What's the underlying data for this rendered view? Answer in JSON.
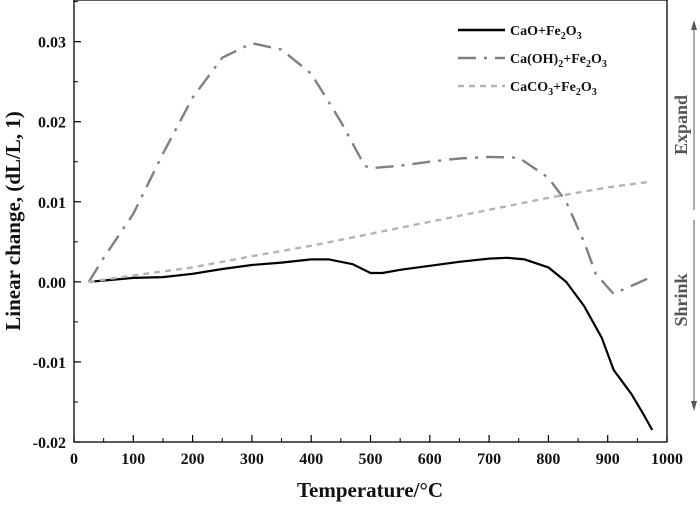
{
  "chart_data": {
    "type": "line",
    "title": "",
    "xlabel": "Temperature/°C",
    "ylabel": "Linear change, (dL/L, 1)",
    "xlim": [
      0,
      1000
    ],
    "ylim": [
      -0.02,
      0.0352
    ],
    "xticks": [
      0,
      100,
      200,
      300,
      400,
      500,
      600,
      700,
      800,
      900,
      1000
    ],
    "xtick_labels": [
      "0",
      "100",
      "200",
      "300",
      "400",
      "500",
      "600",
      "700",
      "800",
      "900",
      "1000"
    ],
    "yticks": [
      -0.02,
      -0.01,
      0.0,
      0.01,
      0.02,
      0.03
    ],
    "ytick_labels": [
      "-0.02",
      "-0.01",
      "0.00",
      "0.01",
      "0.02",
      "0.03"
    ],
    "grid": false,
    "legend_position": "top-right",
    "annotations": {
      "expand": "Expand",
      "shrink": "Shrink"
    },
    "series": [
      {
        "name": "CaO+Fe2O3",
        "label_parts": [
          "CaO+Fe",
          "2",
          "O",
          "3"
        ],
        "color": "#000000",
        "dash": "solid",
        "x": [
          25,
          100,
          150,
          200,
          250,
          300,
          350,
          400,
          430,
          470,
          500,
          520,
          550,
          600,
          650,
          700,
          730,
          760,
          800,
          830,
          860,
          890,
          910,
          940,
          960,
          975
        ],
        "y": [
          0,
          0.0005,
          0.0006,
          0.001,
          0.0016,
          0.0021,
          0.0024,
          0.0028,
          0.0028,
          0.0022,
          0.0011,
          0.0011,
          0.0015,
          0.002,
          0.0025,
          0.0029,
          0.003,
          0.0028,
          0.0018,
          0,
          -0.003,
          -0.007,
          -0.011,
          -0.014,
          -0.0165,
          -0.0185
        ]
      },
      {
        "name": "Ca(OH)2+Fe2O3",
        "label_parts": [
          "Ca(OH)",
          "2",
          "+Fe",
          "2",
          "O",
          "3"
        ],
        "color": "#808080",
        "dash": "dashdot",
        "x": [
          25,
          50,
          100,
          150,
          200,
          250,
          300,
          350,
          400,
          450,
          490,
          500,
          550,
          600,
          650,
          700,
          750,
          800,
          830,
          860,
          880,
          910,
          940,
          970
        ],
        "y": [
          0,
          0.003,
          0.0085,
          0.016,
          0.023,
          0.028,
          0.0298,
          0.029,
          0.026,
          0.02,
          0.0145,
          0.0142,
          0.0145,
          0.015,
          0.0154,
          0.0156,
          0.0155,
          0.013,
          0.01,
          0.005,
          0.001,
          -0.0015,
          -0.0005,
          0.0005
        ]
      },
      {
        "name": "CaCO3+Fe2O3",
        "label_parts": [
          "CaCO",
          "3",
          "+Fe",
          "2",
          "O",
          "3"
        ],
        "color": "#b4b4b4",
        "dash": "dashed",
        "x": [
          25,
          100,
          200,
          300,
          400,
          500,
          600,
          700,
          800,
          900,
          970
        ],
        "y": [
          0,
          0.0008,
          0.0018,
          0.0032,
          0.0045,
          0.006,
          0.0075,
          0.009,
          0.0105,
          0.0118,
          0.0125
        ]
      }
    ]
  }
}
